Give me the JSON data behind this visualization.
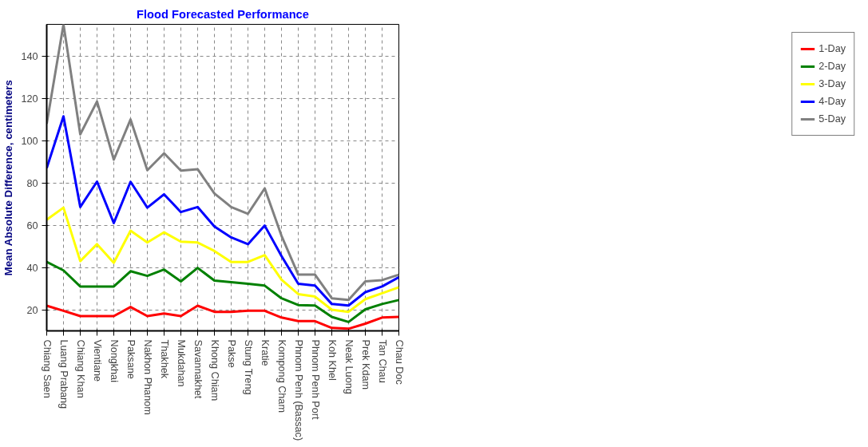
{
  "chart_data": {
    "type": "line",
    "title": "Flood Forecasted Performance",
    "ylabel": "Mean Absolute Difference, centimeters",
    "categories": [
      "Chiang Saen",
      "Luang Prabang",
      "Chiang Khan",
      "Vientiane",
      "Nongkhai",
      "Paksane",
      "Nakhon Phanom",
      "Thakhek",
      "Mukdahan",
      "Savannakhet",
      "Khong Chiam",
      "Pakse",
      "Stung Treng",
      "Kratie",
      "Kompong Cham",
      "Phnom Penh (Bassac)",
      "Phnom Penh Port",
      "Koh Khel",
      "Neak Luong",
      "Prek Kdam",
      "Tan Chau",
      "Chau Doc"
    ],
    "series": [
      {
        "name": "1-Day",
        "color": "#ff0000",
        "values": [
          21.9,
          19.5,
          17,
          17,
          17,
          21.3,
          17,
          18.2,
          17,
          21.9,
          19,
          19,
          19.5,
          19.5,
          16.3,
          14.6,
          14.6,
          11.4,
          11,
          13.4,
          16.3,
          16.6
        ]
      },
      {
        "name": "2-Day",
        "color": "#008000",
        "values": [
          42.6,
          38.6,
          31,
          31,
          31,
          38.2,
          36,
          39,
          33.4,
          39.8,
          33.8,
          33,
          32.3,
          31.4,
          25.4,
          22.2,
          22,
          16.6,
          14.2,
          20.2,
          22.7,
          24.6
        ]
      },
      {
        "name": "3-Day",
        "color": "#ffff00",
        "values": [
          62.6,
          68.3,
          43,
          51,
          42.2,
          57.4,
          51.8,
          56.6,
          52.2,
          51.8,
          47.8,
          42.6,
          42.6,
          45.8,
          34.2,
          27.4,
          26.2,
          20,
          19,
          25,
          27.8,
          30.6
        ]
      },
      {
        "name": "4-Day",
        "color": "#0000ff",
        "values": [
          87,
          111.5,
          68.6,
          80.6,
          61,
          80.5,
          68.3,
          74.6,
          66.2,
          68.6,
          59.4,
          54.2,
          51,
          59.8,
          45.4,
          32.3,
          31.4,
          22.7,
          22,
          28.3,
          31,
          35.4
        ]
      },
      {
        "name": "5-Day",
        "color": "#808080",
        "values": [
          108,
          155,
          103,
          118.5,
          91,
          110,
          86,
          94,
          85.8,
          86.5,
          75,
          68.6,
          65.4,
          77.4,
          55,
          36.6,
          36.6,
          25.4,
          24.6,
          33.4,
          34,
          36.6
        ]
      }
    ],
    "ylim": [
      10,
      155
    ],
    "yticks": [
      20,
      40,
      60,
      80,
      100,
      120,
      140
    ],
    "grid": true,
    "legend": "top right",
    "marker": "none",
    "line_style": "solid"
  }
}
